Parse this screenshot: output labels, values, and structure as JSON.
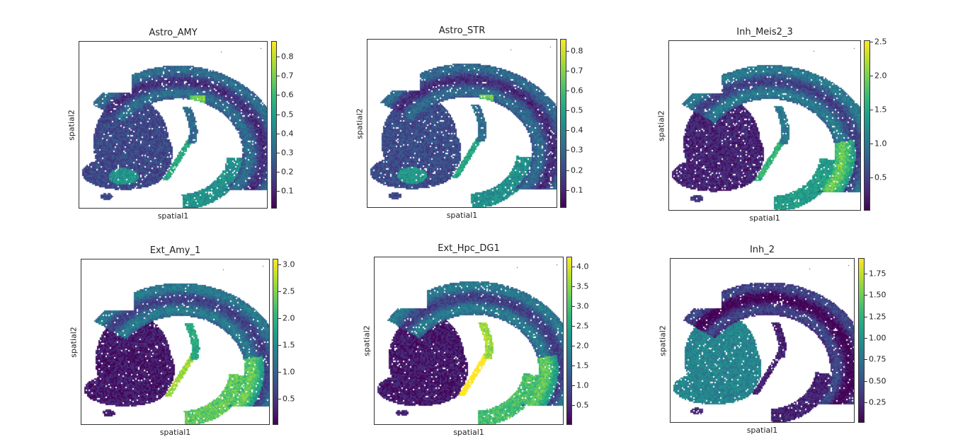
{
  "figure": {
    "colormap": "viridis",
    "colormap_stops": [
      "#440154",
      "#482878",
      "#3e4989",
      "#31688e",
      "#26828e",
      "#1f9e89",
      "#35b779",
      "#6ece58",
      "#b5de2b",
      "#fde725"
    ]
  },
  "chart_data": [
    {
      "type": "scatter",
      "title": "Astro_AMY",
      "xlabel": "spatial1",
      "ylabel": "spatial2",
      "colorbar": {
        "range": [
          0.01,
          0.88
        ],
        "ticks": [
          0.1,
          0.2,
          0.3,
          0.4,
          0.5,
          0.6,
          0.7,
          0.8
        ],
        "tick_labels": [
          "0.1",
          "0.2",
          "0.3",
          "0.4",
          "0.5",
          "0.6",
          "0.7",
          "0.8"
        ]
      },
      "pattern": {
        "base": 0.22,
        "hotspots": [
          "cortex-dorsal",
          "hippocampus-band",
          "amygdala-lower-left"
        ],
        "region_levels": {
          "striatum": 0.22,
          "cortex": 0.25,
          "hippocampus": 0.35
        }
      }
    },
    {
      "type": "scatter",
      "title": "Astro_STR",
      "xlabel": "spatial1",
      "ylabel": "spatial2",
      "colorbar": {
        "range": [
          0.01,
          0.86
        ],
        "ticks": [
          0.1,
          0.2,
          0.3,
          0.4,
          0.5,
          0.6,
          0.7,
          0.8
        ],
        "tick_labels": [
          "0.1",
          "0.2",
          "0.3",
          "0.4",
          "0.5",
          "0.6",
          "0.7",
          "0.8"
        ]
      },
      "pattern": {
        "base": 0.22,
        "hotspots": [
          "cortex-dorsal",
          "hippocampus-band",
          "amygdala-lower-left"
        ],
        "region_levels": {
          "striatum": 0.23,
          "cortex": 0.24,
          "hippocampus": 0.35
        }
      }
    },
    {
      "type": "scatter",
      "title": "Inh_Meis2_3",
      "xlabel": "spatial1",
      "ylabel": "spatial2",
      "colorbar": {
        "range": [
          0.01,
          2.52
        ],
        "ticks": [
          0.5,
          1.0,
          1.5,
          2.0,
          2.5
        ],
        "tick_labels": [
          "0.5",
          "1.0",
          "1.5",
          "2.0",
          "2.5"
        ]
      },
      "pattern": {
        "base": 0.15,
        "hotspots": [
          "cortex-lateral-edge",
          "hippocampus-band"
        ],
        "region_levels": {
          "striatum": 0.1,
          "cortex": 0.3,
          "hippocampus": 0.4
        }
      }
    },
    {
      "type": "scatter",
      "title": "Ext_Amy_1",
      "xlabel": "spatial1",
      "ylabel": "spatial2",
      "colorbar": {
        "range": [
          0.01,
          3.1
        ],
        "ticks": [
          0.5,
          1.0,
          1.5,
          2.0,
          2.5,
          3.0
        ],
        "tick_labels": [
          "0.5",
          "1.0",
          "1.5",
          "2.0",
          "2.5",
          "3.0"
        ]
      },
      "pattern": {
        "base": 0.1,
        "hotspots": [
          "hippocampus-band",
          "cortex-lateral-edge"
        ],
        "region_levels": {
          "striatum": 0.07,
          "cortex": 0.3,
          "hippocampus": 0.6
        }
      }
    },
    {
      "type": "scatter",
      "title": "Ext_Hpc_DG1",
      "xlabel": "spatial1",
      "ylabel": "spatial2",
      "colorbar": {
        "range": [
          0.01,
          4.25
        ],
        "ticks": [
          0.5,
          1.0,
          1.5,
          2.0,
          2.5,
          3.0,
          3.5,
          4.0
        ],
        "tick_labels": [
          "0.5",
          "1.0",
          "1.5",
          "2.0",
          "2.5",
          "3.0",
          "3.5",
          "4.0"
        ]
      },
      "pattern": {
        "base": 0.1,
        "hotspots": [
          "dentate-gyrus",
          "hippocampus-band",
          "cortex-lateral-edge"
        ],
        "region_levels": {
          "striatum": 0.07,
          "cortex": 0.3,
          "hippocampus": 0.55
        }
      }
    },
    {
      "type": "scatter",
      "title": "Inh_2",
      "xlabel": "spatial1",
      "ylabel": "spatial2",
      "colorbar": {
        "range": [
          0.01,
          1.93
        ],
        "ticks": [
          0.25,
          0.5,
          0.75,
          1.0,
          1.25,
          1.5,
          1.75
        ],
        "tick_labels": [
          "0.25",
          "0.50",
          "0.75",
          "1.00",
          "1.25",
          "1.50",
          "1.75"
        ]
      },
      "pattern": {
        "base": 0.12,
        "hotspots": [
          "striatum-wide"
        ],
        "region_levels": {
          "striatum": 0.45,
          "cortex": 0.1,
          "hippocampus": 0.1
        }
      }
    }
  ]
}
